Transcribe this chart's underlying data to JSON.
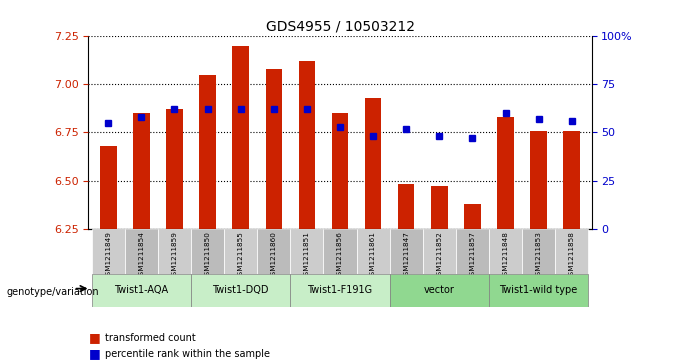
{
  "title": "GDS4955 / 10503212",
  "samples": [
    "GSM1211849",
    "GSM1211854",
    "GSM1211859",
    "GSM1211850",
    "GSM1211855",
    "GSM1211860",
    "GSM1211851",
    "GSM1211856",
    "GSM1211861",
    "GSM1211847",
    "GSM1211852",
    "GSM1211857",
    "GSM1211848",
    "GSM1211853",
    "GSM1211858"
  ],
  "bar_values": [
    6.68,
    6.85,
    6.87,
    7.05,
    7.2,
    7.08,
    7.12,
    6.85,
    6.93,
    6.48,
    6.47,
    6.38,
    6.83,
    6.76,
    6.76
  ],
  "percentile_values": [
    55,
    58,
    62,
    62,
    62,
    62,
    62,
    53,
    48,
    52,
    48,
    47,
    60,
    57,
    56
  ],
  "groups": [
    {
      "label": "Twist1-AQA",
      "indices": [
        0,
        1,
        2
      ],
      "color_light": "#c8eec8",
      "color_dark": "#90d890"
    },
    {
      "label": "Twist1-DQD",
      "indices": [
        3,
        4,
        5
      ],
      "color_light": "#c8eec8",
      "color_dark": "#90d890"
    },
    {
      "label": "Twist1-F191G",
      "indices": [
        6,
        7,
        8
      ],
      "color_light": "#c8eec8",
      "color_dark": "#90d890"
    },
    {
      "label": "vector",
      "indices": [
        9,
        10,
        11
      ],
      "color_light": "#90d890",
      "color_dark": "#90d890"
    },
    {
      "label": "Twist1-wild type",
      "indices": [
        12,
        13,
        14
      ],
      "color_light": "#90d890",
      "color_dark": "#90d890"
    }
  ],
  "ylim_left": [
    6.25,
    7.25
  ],
  "ylim_right": [
    0,
    100
  ],
  "yticks_left": [
    6.25,
    6.5,
    6.75,
    7.0,
    7.25
  ],
  "yticks_right": [
    0,
    25,
    50,
    75,
    100
  ],
  "bar_color": "#cc2200",
  "dot_color": "#0000cc",
  "background_color": "#ffffff",
  "xlabel_color": "#cc2200",
  "ylabel_right_color": "#0000cc",
  "bar_baseline": 6.25,
  "legend_bar_label": "transformed count",
  "legend_dot_label": "percentile rank within the sample",
  "genotype_label": "genotype/variation"
}
